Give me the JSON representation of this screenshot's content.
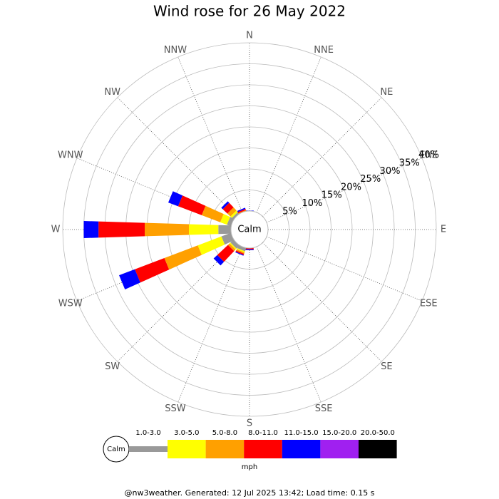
{
  "chart_data": {
    "type": "wind-rose",
    "title": "Wind rose for 26 May 2022",
    "directions": [
      "N",
      "NNE",
      "NE",
      "ENE",
      "E",
      "ESE",
      "SE",
      "SSE",
      "S",
      "SSW",
      "SW",
      "WSW",
      "W",
      "WNW",
      "NW",
      "NNW"
    ],
    "series": [
      {
        "name": "1.0-3.0",
        "color": "#999999",
        "values": [
          0,
          0,
          0,
          0,
          0,
          0,
          0,
          0,
          0,
          0.8,
          1,
          2.4,
          3,
          1,
          0.5,
          0
        ]
      },
      {
        "name": "3.0-5.0",
        "color": "#ffff00",
        "values": [
          0,
          0,
          0,
          0,
          0,
          0,
          0,
          0,
          0,
          0.3,
          0.3,
          6,
          7,
          1.7,
          0.5,
          0
        ]
      },
      {
        "name": "5.0-8.0",
        "color": "#ffa000",
        "values": [
          0,
          0,
          0,
          0,
          0,
          0,
          0,
          0,
          0,
          0.3,
          0.5,
          8.5,
          10.5,
          4.7,
          1,
          0.2
        ]
      },
      {
        "name": "8.0-11.0",
        "color": "#ff0000",
        "values": [
          0,
          0,
          0,
          0,
          0,
          0,
          0,
          0,
          0.3,
          0.3,
          3.5,
          7.5,
          11,
          6,
          1.5,
          0.3
        ]
      },
      {
        "name": "11.0-15.0",
        "color": "#0000ff",
        "values": [
          0.1,
          0,
          0,
          0,
          0,
          0,
          0,
          0,
          0.2,
          0.2,
          1.2,
          4,
          3.5,
          2.5,
          0.5,
          0.3
        ]
      },
      {
        "name": "15.0-20.0",
        "color": "#a020f0",
        "values": [
          0,
          0,
          0,
          0,
          0,
          0,
          0,
          0,
          0,
          0,
          0,
          0,
          0,
          0,
          0,
          0
        ]
      },
      {
        "name": "20.0-50.0",
        "color": "#000000",
        "values": [
          0,
          0,
          0,
          0,
          0,
          0,
          0,
          0,
          0,
          0,
          0,
          0,
          0,
          0,
          0,
          0
        ]
      }
    ],
    "ylim": [
      0,
      40
    ],
    "yticks": [
      {
        "value": 5,
        "label": "5%"
      },
      {
        "value": 10,
        "label": "10%"
      },
      {
        "value": 15,
        "label": "15%"
      },
      {
        "value": 20,
        "label": "20%"
      },
      {
        "value": 25,
        "label": "25%"
      },
      {
        "value": 30,
        "label": "30%"
      },
      {
        "value": 35,
        "label": "35%"
      },
      {
        "value": 40,
        "label": "40%"
      }
    ],
    "calm_label": "Calm",
    "unit": "mph",
    "footer": "@nw3weather. Generated: 12 Jul 2025 13:42; Load time: 0.15 s"
  }
}
